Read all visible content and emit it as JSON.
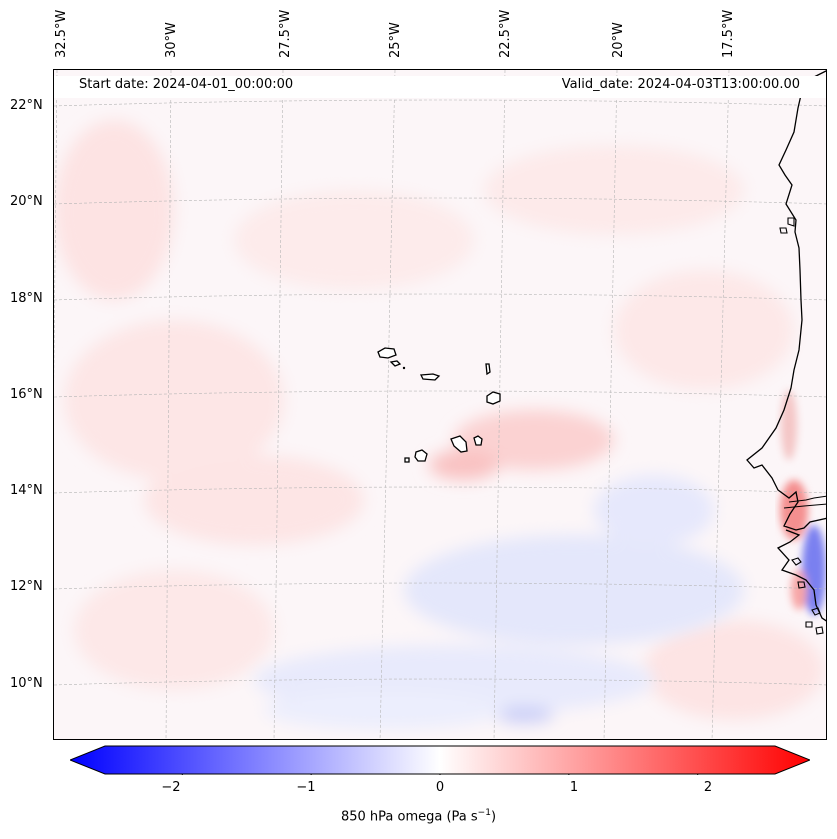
{
  "header": {
    "start_date": "Start date: 2024-04-01_00:00:00",
    "valid_date": "Valid_date: 2024-04-03T13:00:00.00"
  },
  "longitude_labels": [
    "32.5°W",
    "30°W",
    "27.5°W",
    "25°W",
    "22.5°W",
    "20°W",
    "17.5°W"
  ],
  "latitude_labels": [
    "22°N",
    "20°N",
    "18°N",
    "16°N",
    "14°N",
    "12°N",
    "10°N"
  ],
  "colorbar": {
    "ticks": [
      "−2",
      "−1",
      "0",
      "1",
      "2"
    ],
    "tick_values": [
      -2,
      -1,
      0,
      1,
      2
    ],
    "range": [
      -2.6,
      2.6
    ],
    "label": "850 hPa omega (Pa s",
    "label_exponent": "−1",
    "label_suffix": ")",
    "colors": {
      "low": "#0000ff",
      "mid": "#ffffff",
      "high": "#ff0000"
    }
  }
}
